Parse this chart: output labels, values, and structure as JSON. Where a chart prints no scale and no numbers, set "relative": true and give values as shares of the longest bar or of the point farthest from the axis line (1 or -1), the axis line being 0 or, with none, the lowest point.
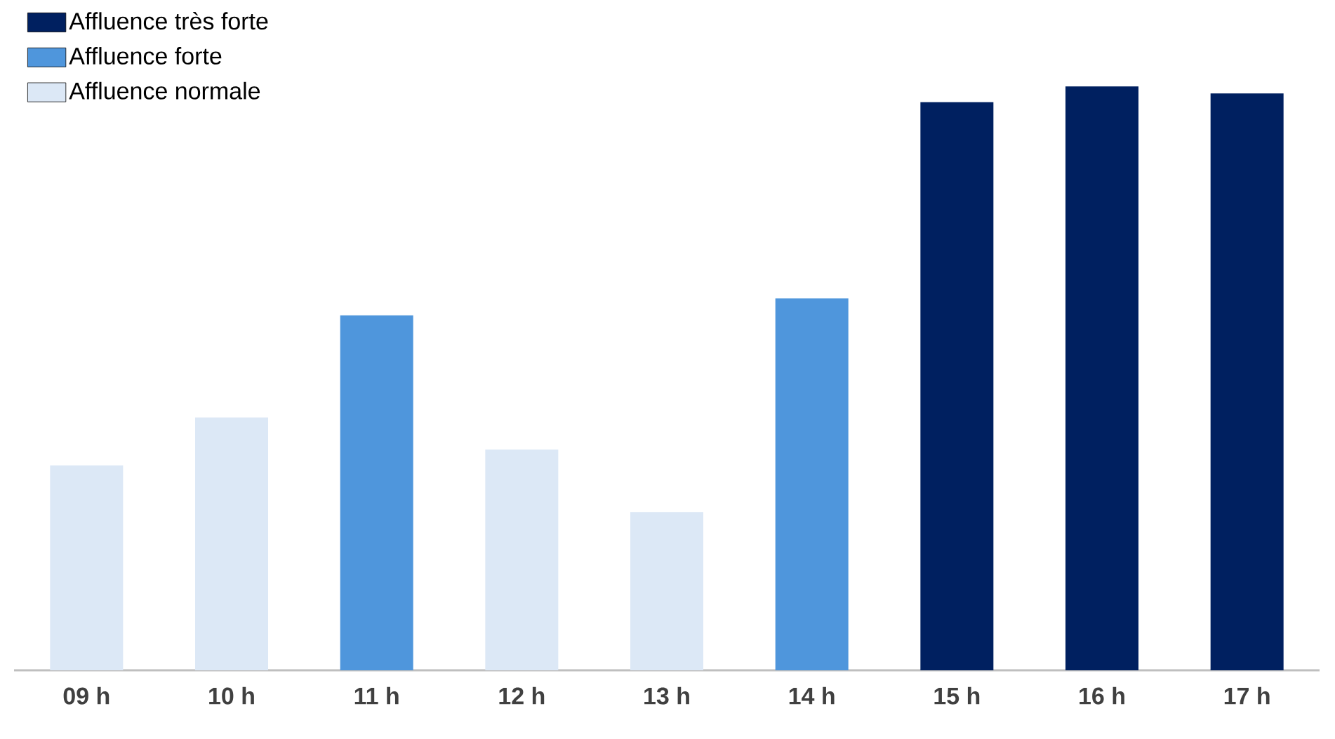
{
  "chart_data": {
    "type": "bar",
    "relative": true,
    "categories": [
      "09 h",
      "10 h",
      "11 h",
      "12 h",
      "13 h",
      "14 h",
      "15 h",
      "16 h",
      "17 h"
    ],
    "series": [
      {
        "name": "Affluence très forte",
        "color": "#002060",
        "values": [
          null,
          null,
          null,
          null,
          null,
          null,
          0.973,
          1,
          0.988
        ]
      },
      {
        "name": "Affluence forte",
        "color": "#4f96dc",
        "values": [
          null,
          null,
          0.608,
          null,
          null,
          0.637,
          null,
          null,
          null
        ]
      },
      {
        "name": "Affluence normale",
        "color": "#dce8f6",
        "values": [
          0.351,
          0.433,
          null,
          0.378,
          0.271,
          null,
          null,
          null,
          null
        ]
      }
    ],
    "legend": "top left"
  }
}
